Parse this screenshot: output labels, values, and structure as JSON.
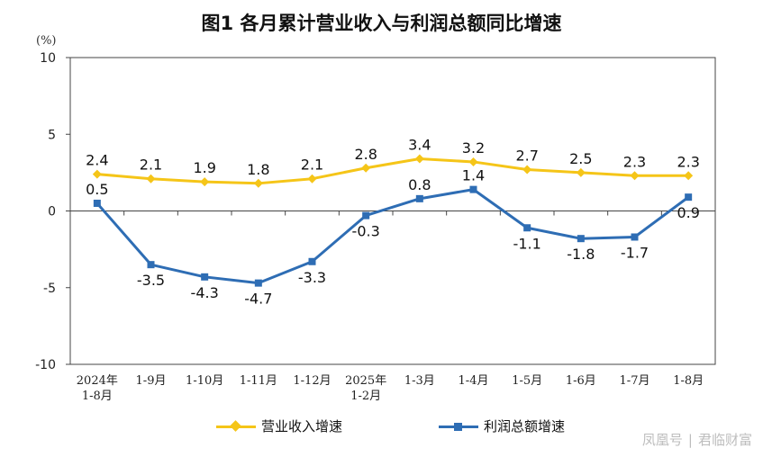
{
  "chart_data": {
    "type": "line",
    "title": "图1  各月累计营业收入与利润总额同比增速",
    "unit": "(%)",
    "categories": [
      [
        "2024年",
        "1-8月"
      ],
      [
        "1-9月"
      ],
      [
        "1-10月"
      ],
      [
        "1-11月"
      ],
      [
        "1-12月"
      ],
      [
        "2025年",
        "1-2月"
      ],
      [
        "1-3月"
      ],
      [
        "1-4月"
      ],
      [
        "1-5月"
      ],
      [
        "1-6月"
      ],
      [
        "1-7月"
      ],
      [
        "1-8月"
      ]
    ],
    "ylim": [
      -10,
      10
    ],
    "yticks": [
      -10,
      -5,
      0,
      5,
      10
    ],
    "grid": false,
    "legend_position": "bottom",
    "series": [
      {
        "name": "营业收入增速",
        "color": "#F5C518",
        "marker": "diamond",
        "values": [
          2.4,
          2.1,
          1.9,
          1.8,
          2.1,
          2.8,
          3.4,
          3.2,
          2.7,
          2.5,
          2.3,
          2.3
        ],
        "labels": [
          "2.4",
          "2.1",
          "1.9",
          "1.8",
          "2.1",
          "2.8",
          "3.4",
          "3.2",
          "2.7",
          "2.5",
          "2.3",
          "2.3"
        ]
      },
      {
        "name": "利润总额增速",
        "color": "#2E6DB4",
        "marker": "square",
        "values": [
          0.5,
          -3.5,
          -4.3,
          -4.7,
          -3.3,
          -0.3,
          0.8,
          1.4,
          -1.1,
          -1.8,
          -1.7,
          0.9
        ],
        "labels": [
          "0.5",
          "-3.5",
          "-4.3",
          "-4.7",
          "-3.3",
          "-0.3",
          "0.8",
          "1.4",
          "-1.1",
          "-1.8",
          "-1.7",
          "0.9"
        ]
      }
    ]
  },
  "watermark": {
    "left": "凤凰号",
    "separator": "|",
    "right": "君临财富"
  }
}
